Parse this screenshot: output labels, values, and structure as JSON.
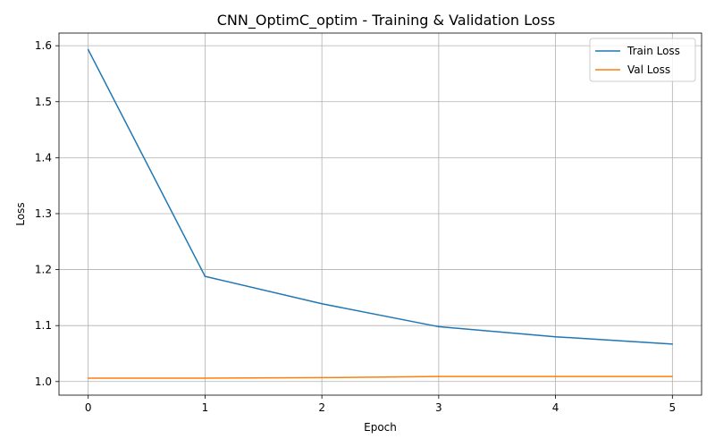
{
  "chart_data": {
    "type": "line",
    "title": "CNN_OptimC_optim - Training & Validation Loss",
    "xlabel": "Epoch",
    "ylabel": "Loss",
    "x": [
      0,
      1,
      2,
      3,
      4,
      5
    ],
    "xlim": [
      -0.25,
      5.25
    ],
    "ylim": [
      0.9757,
      1.6226
    ],
    "xticks": [
      0,
      1,
      2,
      3,
      4,
      5
    ],
    "yticks": [
      1.0,
      1.1,
      1.2,
      1.3,
      1.4,
      1.5,
      1.6
    ],
    "ytick_labels": [
      "1.0",
      "1.1",
      "1.2",
      "1.3",
      "1.4",
      "1.5",
      "1.6"
    ],
    "xtick_labels": [
      "0",
      "1",
      "2",
      "3",
      "4",
      "5"
    ],
    "grid": true,
    "legend_position": "top-right",
    "series": [
      {
        "name": "Train Loss",
        "color": "#1f77b4",
        "values": [
          1.593,
          1.188,
          1.139,
          1.098,
          1.08,
          1.067
        ]
      },
      {
        "name": "Val Loss",
        "color": "#ff7f0e",
        "values": [
          1.006,
          1.006,
          1.007,
          1.009,
          1.009,
          1.009
        ]
      }
    ]
  }
}
